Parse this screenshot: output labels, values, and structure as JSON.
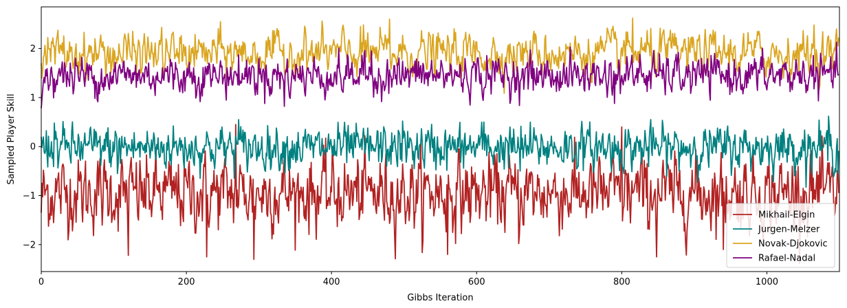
{
  "chart_data": {
    "type": "line",
    "xlabel": "Gibbs Iteration",
    "ylabel": "Sampled Player Skill",
    "xlim": [
      0,
      1100
    ],
    "ylim": [
      -2.55,
      2.85
    ],
    "xticks": [
      0,
      200,
      400,
      600,
      800,
      1000
    ],
    "yticks": [
      -2,
      -1,
      0,
      1,
      2
    ],
    "xtick_labels": [
      "0",
      "200",
      "400",
      "600",
      "800",
      "1000"
    ],
    "ytick_labels": [
      "−2",
      "−1",
      "0",
      "1",
      "2"
    ],
    "grid": false,
    "legend_position": "lower-right",
    "n_iterations": 1100,
    "series": [
      {
        "name": "Mikhail-Elgin",
        "color": "#b22222",
        "mean": -0.95,
        "sd": 0.38,
        "ar": 0.35,
        "start": -1.35,
        "extremes": [
          [
            120,
            -2.22
          ],
          [
            228,
            -2.25
          ],
          [
            293,
            -2.3
          ],
          [
            268,
            0.45
          ],
          [
            560,
            -2.2
          ],
          [
            658,
            -1.98
          ],
          [
            800,
            0.4
          ],
          [
            848,
            -2.25
          ],
          [
            940,
            -2.1
          ],
          [
            1060,
            -0.15
          ]
        ]
      },
      {
        "name": "Jurgen-Melzer",
        "color": "#008080",
        "mean": -0.02,
        "sd": 0.22,
        "ar": 0.3,
        "start": 0.2,
        "extremes": [
          [
            18,
            0.48
          ],
          [
            272,
            0.55
          ],
          [
            498,
            0.52
          ],
          [
            610,
            0.5
          ],
          [
            1085,
            0.62
          ],
          [
            1098,
            -0.55
          ],
          [
            105,
            -0.55
          ],
          [
            660,
            -0.5
          ]
        ]
      },
      {
        "name": "Novak-Djokovic",
        "color": "#daa520",
        "mean": 1.9,
        "sd": 0.22,
        "ar": 0.5,
        "start": 1.7,
        "extremes": [
          [
            480,
            2.6
          ],
          [
            815,
            2.62
          ],
          [
            1065,
            2.48
          ],
          [
            440,
            2.45
          ],
          [
            100,
            1.5
          ]
        ]
      },
      {
        "name": "Rafael-Nadal",
        "color": "#800080",
        "mean": 1.45,
        "sd": 0.2,
        "ar": 0.45,
        "start": 0.8,
        "extremes": [
          [
            0,
            0.78
          ],
          [
            335,
            0.82
          ],
          [
            790,
            0.88
          ],
          [
            455,
            1.95
          ],
          [
            825,
            1.88
          ]
        ]
      }
    ]
  }
}
